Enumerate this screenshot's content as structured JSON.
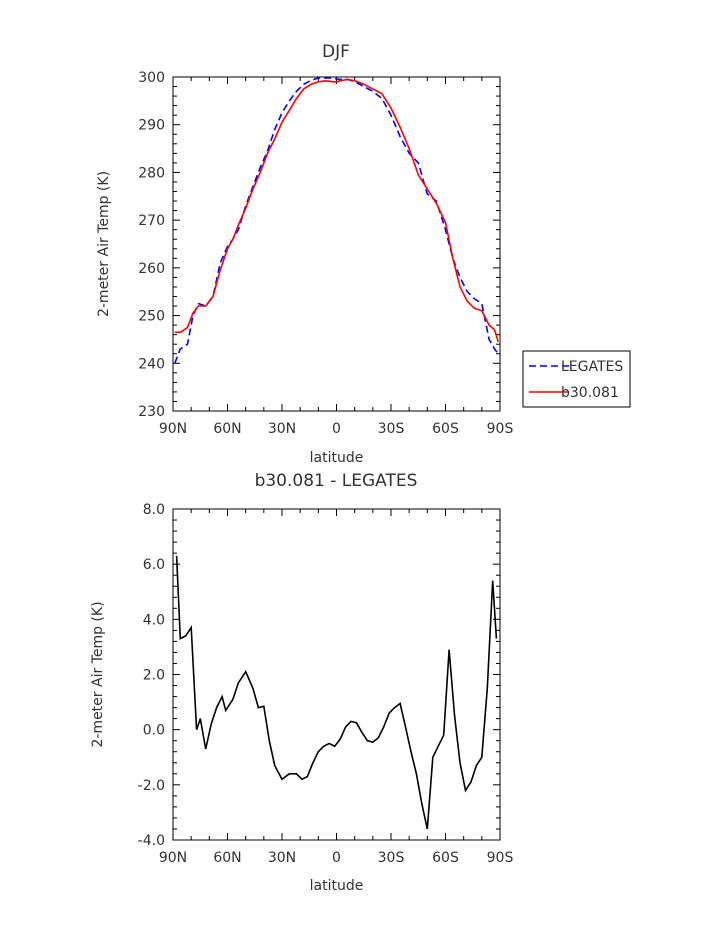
{
  "chart_data": [
    {
      "type": "line",
      "title": "DJF",
      "xlabel": "latitude",
      "ylabel": "2-meter Air Temp (K)",
      "xlim": [
        -90,
        90
      ],
      "ylim": [
        230,
        300
      ],
      "x_ticks": [
        -90,
        -60,
        -30,
        0,
        30,
        60,
        90
      ],
      "x_tick_labels": [
        "90N",
        "60N",
        "30N",
        "0",
        "30S",
        "60S",
        "90S"
      ],
      "y_ticks": [
        230,
        240,
        250,
        260,
        270,
        280,
        290,
        300
      ],
      "y_tick_labels": [
        "230",
        "240",
        "250",
        "260",
        "270",
        "280",
        "290",
        "300"
      ],
      "legend_position": "right",
      "series": [
        {
          "name": "LEGATES",
          "color": "#0000ff",
          "style": "dashed",
          "x": [
            -89,
            -86,
            -82,
            -79,
            -76,
            -72,
            -68,
            -64,
            -60,
            -57,
            -54,
            -50,
            -46,
            -42,
            -38,
            -34,
            -30,
            -26,
            -22,
            -18,
            -14,
            -10,
            -6,
            -2,
            0,
            2,
            6,
            10,
            15,
            20,
            25,
            30,
            35,
            40,
            45,
            50,
            55,
            60,
            64,
            68,
            72,
            76,
            80,
            84,
            87,
            89
          ],
          "y": [
            240,
            243,
            244,
            250,
            252.5,
            252,
            254,
            261,
            264.5,
            266,
            268,
            273,
            277,
            281,
            284.5,
            289,
            292.5,
            295,
            297,
            298.5,
            299.3,
            299.8,
            299.8,
            299.8,
            299.6,
            299.5,
            299.5,
            299,
            298,
            297,
            295.5,
            292,
            287.5,
            284,
            282,
            275.5,
            274,
            268,
            262,
            258,
            255,
            253.5,
            252.5,
            245,
            243,
            242
          ]
        },
        {
          "name": "b30.081",
          "color": "#ff0000",
          "style": "solid",
          "x": [
            -89,
            -86,
            -82,
            -79,
            -76,
            -72,
            -68,
            -64,
            -60,
            -57,
            -54,
            -50,
            -46,
            -42,
            -38,
            -34,
            -30,
            -26,
            -22,
            -18,
            -14,
            -10,
            -6,
            -2,
            0,
            2,
            6,
            10,
            15,
            20,
            25,
            30,
            35,
            40,
            45,
            50,
            55,
            60,
            64,
            68,
            72,
            76,
            80,
            84,
            87,
            89
          ],
          "y": [
            246.5,
            246.5,
            247.5,
            250.5,
            252,
            252,
            254,
            259.5,
            264,
            266,
            269,
            272.5,
            276.5,
            280,
            284,
            287,
            290.5,
            293,
            295.5,
            297.5,
            298.5,
            299,
            299.2,
            299,
            299,
            299.2,
            299.5,
            299.2,
            298.5,
            297.5,
            296.5,
            293.5,
            289.5,
            285,
            279.5,
            276.5,
            273.5,
            269.5,
            262,
            256,
            253,
            251.5,
            251,
            248,
            247,
            244.5
          ]
        }
      ]
    },
    {
      "type": "line",
      "title": "b30.081 - LEGATES",
      "xlabel": "latitude",
      "ylabel": "2-meter Air Temp (K)",
      "xlim": [
        -90,
        90
      ],
      "ylim": [
        -4,
        8
      ],
      "x_ticks": [
        -90,
        -60,
        -30,
        0,
        30,
        60,
        90
      ],
      "x_tick_labels": [
        "90N",
        "60N",
        "30N",
        "0",
        "30S",
        "60S",
        "90S"
      ],
      "y_ticks": [
        -4,
        -2,
        0,
        2,
        4,
        6,
        8
      ],
      "y_tick_labels": [
        "-4.0",
        "-2.0",
        "0.0",
        "2.0",
        "4.0",
        "6.0",
        "8.0"
      ],
      "series": [
        {
          "color": "#000000",
          "style": "solid",
          "x": [
            -88,
            -86,
            -83,
            -80,
            -77,
            -75,
            -72,
            -69,
            -66,
            -63,
            -61,
            -57,
            -54,
            -50,
            -46,
            -43,
            -40,
            -37,
            -34,
            -30,
            -26,
            -22,
            -19,
            -16,
            -13,
            -10,
            -7,
            -4,
            -1,
            2,
            5,
            8,
            11,
            14,
            17,
            20,
            23,
            26,
            29,
            32,
            35,
            38,
            41,
            44,
            47,
            50,
            53,
            56,
            59,
            62,
            65,
            68,
            71,
            74,
            77,
            80,
            83,
            86,
            88
          ],
          "y": [
            6.3,
            3.3,
            3.4,
            3.7,
            0.0,
            0.4,
            -0.7,
            0.2,
            0.8,
            1.2,
            0.7,
            1.1,
            1.7,
            2.1,
            1.5,
            0.8,
            0.85,
            -0.4,
            -1.3,
            -1.8,
            -1.6,
            -1.6,
            -1.8,
            -1.7,
            -1.2,
            -0.8,
            -0.6,
            -0.5,
            -0.6,
            -0.35,
            0.1,
            0.3,
            0.25,
            -0.1,
            -0.4,
            -0.45,
            -0.3,
            0.1,
            0.6,
            0.8,
            0.95,
            0.1,
            -0.8,
            -1.6,
            -2.7,
            -3.6,
            -1.0,
            -0.6,
            -0.2,
            2.9,
            0.5,
            -1.2,
            -2.2,
            -1.9,
            -1.3,
            -1.0,
            1.5,
            5.4,
            3.3
          ]
        }
      ]
    }
  ]
}
